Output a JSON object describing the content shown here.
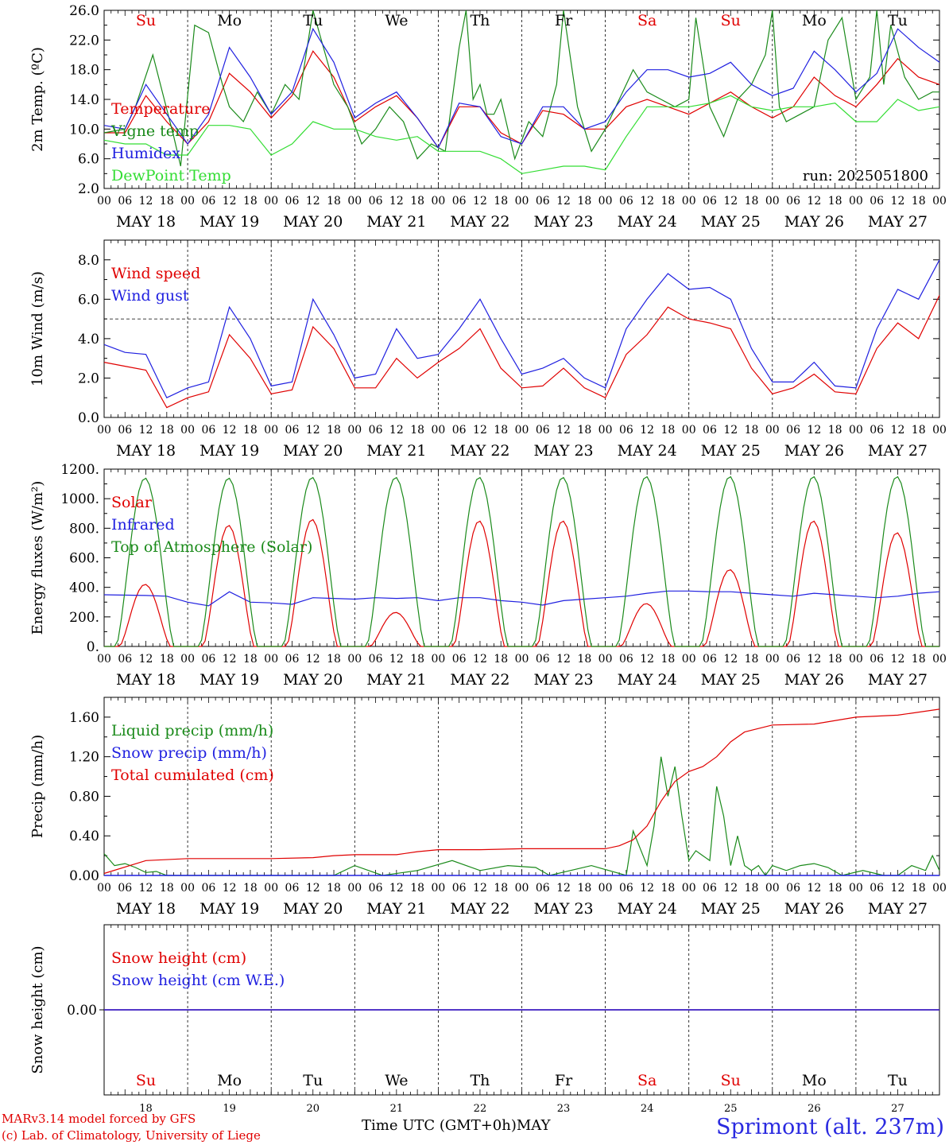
{
  "footer": {
    "model_line": "MARv3.14 model forced by GFS",
    "credit_line": "(c) Lab. of Climatology, University of Liege",
    "x_axis_title": "Time UTC (GMT+0h)MAY",
    "station": "Sprimont (alt. 237m)"
  },
  "colors": {
    "red": "#e00000",
    "blue": "#2020e0",
    "dark_green": "#1a8a1a",
    "light_green": "#33dd33",
    "weekend_day": "#e00000",
    "weekday": "#000000"
  },
  "days": [
    {
      "abbr": "Su",
      "date_label": "MAY 18",
      "day_number": "18",
      "weekend": true
    },
    {
      "abbr": "Mo",
      "date_label": "MAY 19",
      "day_number": "19",
      "weekend": false
    },
    {
      "abbr": "Tu",
      "date_label": "MAY 20",
      "day_number": "20",
      "weekend": false
    },
    {
      "abbr": "We",
      "date_label": "MAY 21",
      "day_number": "21",
      "weekend": false
    },
    {
      "abbr": "Th",
      "date_label": "MAY 22",
      "day_number": "22",
      "weekend": false
    },
    {
      "abbr": "Fr",
      "date_label": "MAY 23",
      "day_number": "23",
      "weekend": false
    },
    {
      "abbr": "Sa",
      "date_label": "MAY 24",
      "day_number": "24",
      "weekend": true
    },
    {
      "abbr": "Su",
      "date_label": "MAY 25",
      "day_number": "25",
      "weekend": true
    },
    {
      "abbr": "Mo",
      "date_label": "MAY 26",
      "day_number": "26",
      "weekend": false
    },
    {
      "abbr": "Tu",
      "date_label": "MAY 27",
      "day_number": "27",
      "weekend": false
    }
  ],
  "hour_ticks": [
    "00",
    "06",
    "12",
    "18"
  ],
  "chart_data": [
    {
      "id": "temperature",
      "type": "line",
      "ylabel": "2m Temp. (ºC)",
      "ylim": [
        2.0,
        26.0
      ],
      "yticks": [
        "2.0",
        "6.0",
        "10.0",
        "14.0",
        "18.0",
        "22.0",
        "26.0"
      ],
      "note": "run: 2025051800",
      "x_unit": "hours since MAY 18 00 UTC",
      "series": [
        {
          "name": "Temperature",
          "color": "#e00000",
          "x": [
            0,
            6,
            12,
            18,
            24,
            30,
            36,
            42,
            48,
            54,
            60,
            66,
            72,
            78,
            84,
            90,
            96,
            102,
            108,
            114,
            120,
            126,
            132,
            138,
            144,
            150,
            156,
            162,
            168,
            174,
            180,
            186,
            192,
            198,
            204,
            210,
            216,
            222,
            228,
            234,
            240
          ],
          "values": [
            9.5,
            9.5,
            14.5,
            11,
            8,
            11,
            17.5,
            15,
            11.5,
            14.5,
            20.5,
            17,
            11,
            13,
            14.5,
            11.5,
            7.5,
            13,
            13,
            9.5,
            8,
            12.5,
            12,
            10,
            10,
            13,
            14,
            13,
            12,
            13.5,
            15,
            13,
            11.5,
            13,
            17,
            14.5,
            13,
            16,
            19.5,
            17,
            16
          ]
        },
        {
          "name": "Vigne temp",
          "color": "#1a8a1a",
          "x": [
            0,
            6,
            9,
            14,
            20,
            22,
            26,
            30,
            34,
            36,
            40,
            44,
            48,
            52,
            56,
            60,
            66,
            70,
            74,
            78,
            82,
            86,
            90,
            94,
            98,
            102,
            104,
            106,
            108,
            110,
            112,
            114,
            118,
            122,
            126,
            130,
            132,
            136,
            140,
            144,
            148,
            152,
            156,
            160,
            164,
            168,
            170,
            174,
            178,
            182,
            186,
            190,
            192,
            194,
            196,
            200,
            204,
            208,
            212,
            216,
            220,
            222,
            224,
            226,
            230,
            234,
            238,
            240
          ],
          "values": [
            9.5,
            10,
            13,
            20,
            9,
            5,
            24,
            23,
            16,
            13,
            11,
            15,
            12,
            16,
            14,
            26,
            16,
            13,
            8,
            10,
            13,
            11,
            6,
            8,
            7,
            21,
            27,
            14,
            16,
            12,
            12,
            14,
            6,
            11,
            9,
            16,
            26,
            13,
            7,
            10,
            14,
            18,
            15,
            14,
            13,
            14,
            25,
            13,
            9,
            14,
            16,
            20,
            27,
            13,
            11,
            12,
            13,
            22,
            25,
            14,
            17,
            27,
            16,
            24,
            17,
            14,
            15,
            15
          ]
        },
        {
          "name": "Humidex",
          "color": "#2020e0",
          "x": [
            0,
            6,
            12,
            18,
            24,
            30,
            36,
            42,
            48,
            54,
            60,
            66,
            72,
            78,
            84,
            90,
            96,
            102,
            108,
            114,
            120,
            126,
            132,
            138,
            144,
            150,
            156,
            162,
            168,
            174,
            180,
            186,
            192,
            198,
            204,
            210,
            216,
            222,
            228,
            234,
            240
          ],
          "values": [
            10.5,
            10,
            16,
            12,
            8,
            12,
            21,
            17,
            12,
            15,
            23.5,
            19,
            11.5,
            13.5,
            15,
            11.5,
            7.5,
            13.5,
            13,
            9,
            8,
            13,
            13,
            10,
            11,
            15,
            18,
            18,
            17,
            17.5,
            19,
            16,
            14.5,
            15.5,
            20.5,
            18,
            15,
            17.5,
            23.5,
            21,
            19
          ]
        },
        {
          "name": "DewPoint Temp",
          "color": "#33dd33",
          "x": [
            0,
            6,
            12,
            18,
            24,
            30,
            36,
            42,
            48,
            54,
            60,
            66,
            72,
            78,
            84,
            90,
            96,
            102,
            108,
            114,
            120,
            126,
            132,
            138,
            144,
            150,
            156,
            162,
            168,
            174,
            180,
            186,
            192,
            198,
            204,
            210,
            216,
            222,
            228,
            234,
            240
          ],
          "values": [
            8.5,
            8,
            8,
            6.5,
            6.5,
            10.5,
            10.5,
            10,
            6.5,
            8,
            11,
            10,
            10,
            9,
            8.5,
            9,
            7,
            7,
            7,
            6,
            4,
            4.5,
            5,
            5,
            4.5,
            9,
            13,
            13,
            13,
            13.5,
            14.5,
            13,
            12.5,
            13,
            13,
            13.5,
            11,
            11,
            14,
            12.5,
            13
          ]
        }
      ]
    },
    {
      "id": "wind",
      "type": "line",
      "ylabel": "10m Wind (m/s)",
      "ylim": [
        0.0,
        9.0
      ],
      "yticks": [
        "0.0",
        "2.0",
        "4.0",
        "6.0",
        "8.0"
      ],
      "reference_line": 5.0,
      "x_unit": "hours since MAY 18 00 UTC",
      "series": [
        {
          "name": "Wind speed",
          "color": "#e00000",
          "x": [
            0,
            6,
            12,
            18,
            24,
            30,
            36,
            42,
            48,
            54,
            60,
            66,
            72,
            78,
            84,
            90,
            96,
            102,
            108,
            114,
            120,
            126,
            132,
            138,
            144,
            150,
            156,
            162,
            168,
            174,
            180,
            186,
            192,
            198,
            204,
            210,
            216,
            222,
            228,
            234,
            240
          ],
          "values": [
            2.8,
            2.6,
            2.4,
            0.5,
            1.0,
            1.3,
            4.2,
            3.0,
            1.2,
            1.4,
            4.6,
            3.5,
            1.5,
            1.5,
            3.0,
            2.0,
            2.8,
            3.5,
            4.5,
            2.5,
            1.5,
            1.6,
            2.5,
            1.5,
            1.0,
            3.2,
            4.2,
            5.6,
            5.0,
            4.8,
            4.5,
            2.5,
            1.2,
            1.5,
            2.2,
            1.3,
            1.2,
            3.5,
            4.8,
            4.0,
            6.2
          ]
        },
        {
          "name": "Wind gust",
          "color": "#2020e0",
          "x": [
            0,
            6,
            12,
            18,
            24,
            30,
            36,
            42,
            48,
            54,
            60,
            66,
            72,
            78,
            84,
            90,
            96,
            102,
            108,
            114,
            120,
            126,
            132,
            138,
            144,
            150,
            156,
            162,
            168,
            174,
            180,
            186,
            192,
            198,
            204,
            210,
            216,
            222,
            228,
            234,
            240
          ],
          "values": [
            3.7,
            3.3,
            3.2,
            1.0,
            1.5,
            1.8,
            5.6,
            4.0,
            1.6,
            1.8,
            6.0,
            4.2,
            2.0,
            2.2,
            4.5,
            3.0,
            3.2,
            4.5,
            6.0,
            4.0,
            2.2,
            2.5,
            3.0,
            2.0,
            1.5,
            4.5,
            6.0,
            7.3,
            6.5,
            6.6,
            6.0,
            3.5,
            1.8,
            1.8,
            2.8,
            1.6,
            1.5,
            4.5,
            6.5,
            6.0,
            8.0
          ]
        }
      ]
    },
    {
      "id": "energy",
      "type": "line",
      "ylabel": "Energy fluxes (W/m²)",
      "ylim": [
        0,
        1200
      ],
      "yticks": [
        "0.",
        "200.",
        "400.",
        "600.",
        "800.",
        "1000.",
        "1200."
      ],
      "x_unit": "hours since MAY 18 00 UTC",
      "series": [
        {
          "name": "Solar",
          "color": "#e00000",
          "daily_peak": [
            420,
            820,
            860,
            230,
            850,
            850,
            290,
            520,
            850,
            770
          ]
        },
        {
          "name": "Infrared",
          "color": "#2020e0",
          "x": [
            0,
            12,
            18,
            24,
            30,
            36,
            42,
            48,
            54,
            60,
            66,
            72,
            78,
            84,
            90,
            96,
            102,
            108,
            114,
            120,
            126,
            132,
            138,
            144,
            150,
            156,
            162,
            168,
            174,
            180,
            186,
            192,
            198,
            204,
            210,
            216,
            222,
            228,
            234,
            240
          ],
          "values": [
            350,
            345,
            340,
            300,
            275,
            370,
            300,
            295,
            285,
            330,
            325,
            320,
            330,
            325,
            330,
            310,
            330,
            330,
            310,
            300,
            280,
            310,
            320,
            330,
            340,
            360,
            375,
            375,
            370,
            370,
            360,
            350,
            340,
            360,
            350,
            340,
            330,
            340,
            360,
            370
          ]
        },
        {
          "name": "Top of Atmosphere (Solar)",
          "color": "#1a8a1a",
          "daily_peak": [
            1140,
            1140,
            1145,
            1145,
            1145,
            1145,
            1150,
            1150,
            1150,
            1150
          ]
        }
      ]
    },
    {
      "id": "precip",
      "type": "line",
      "ylabel": "Precip (mm/h)",
      "ylim": [
        0.0,
        1.8
      ],
      "yticks": [
        "0.00",
        "0.40",
        "0.80",
        "1.20",
        "1.60"
      ],
      "x_unit": "hours since MAY 18 00 UTC",
      "series": [
        {
          "name": "Liquid precip (mm/h)",
          "color": "#1a8a1a",
          "x": [
            0,
            3,
            6,
            9,
            12,
            15,
            18,
            24,
            60,
            66,
            72,
            80,
            90,
            100,
            108,
            116,
            124,
            128,
            140,
            150,
            152,
            156,
            158,
            160,
            162,
            164,
            166,
            168,
            170,
            172,
            174,
            176,
            178,
            180,
            182,
            184,
            186,
            188,
            190,
            192,
            196,
            200,
            204,
            208,
            212,
            218,
            224,
            228,
            232,
            236,
            238,
            240
          ],
          "values": [
            0.22,
            0.1,
            0.12,
            0.08,
            0.03,
            0.04,
            0.0,
            0.0,
            0.0,
            0.0,
            0.1,
            0.0,
            0.05,
            0.15,
            0.05,
            0.1,
            0.08,
            0.0,
            0.1,
            0.0,
            0.45,
            0.1,
            0.5,
            1.2,
            0.8,
            1.1,
            0.6,
            0.15,
            0.25,
            0.2,
            0.15,
            0.9,
            0.6,
            0.1,
            0.4,
            0.1,
            0.05,
            0.1,
            0.0,
            0.1,
            0.05,
            0.1,
            0.12,
            0.08,
            0.0,
            0.05,
            0.0,
            0.0,
            0.1,
            0.05,
            0.2,
            0.05
          ]
        },
        {
          "name": "Snow precip (mm/h)",
          "color": "#2020e0",
          "constant": 0.0
        },
        {
          "name": "Total cumulated (cm)",
          "color": "#e00000",
          "x": [
            0,
            12,
            24,
            36,
            48,
            60,
            66,
            72,
            84,
            90,
            96,
            108,
            120,
            132,
            144,
            148,
            152,
            156,
            160,
            164,
            168,
            172,
            176,
            180,
            184,
            192,
            204,
            216,
            228,
            240
          ],
          "values": [
            0.02,
            0.15,
            0.17,
            0.17,
            0.17,
            0.18,
            0.2,
            0.21,
            0.21,
            0.24,
            0.26,
            0.26,
            0.27,
            0.27,
            0.27,
            0.3,
            0.36,
            0.5,
            0.75,
            0.95,
            1.05,
            1.1,
            1.2,
            1.35,
            1.45,
            1.52,
            1.53,
            1.6,
            1.62,
            1.68
          ]
        }
      ]
    },
    {
      "id": "snow",
      "type": "line",
      "ylabel": "Snow height (cm)",
      "ylim": [
        -1.0,
        1.0
      ],
      "yticks": [
        "0.00"
      ],
      "x_unit": "hours since MAY 18 00 UTC",
      "series": [
        {
          "name": "Snow height (cm)",
          "color": "#e00000",
          "constant": 0.0
        },
        {
          "name": "Snow height (cm W.E.)",
          "color": "#2020e0",
          "constant": 0.0
        }
      ]
    }
  ]
}
